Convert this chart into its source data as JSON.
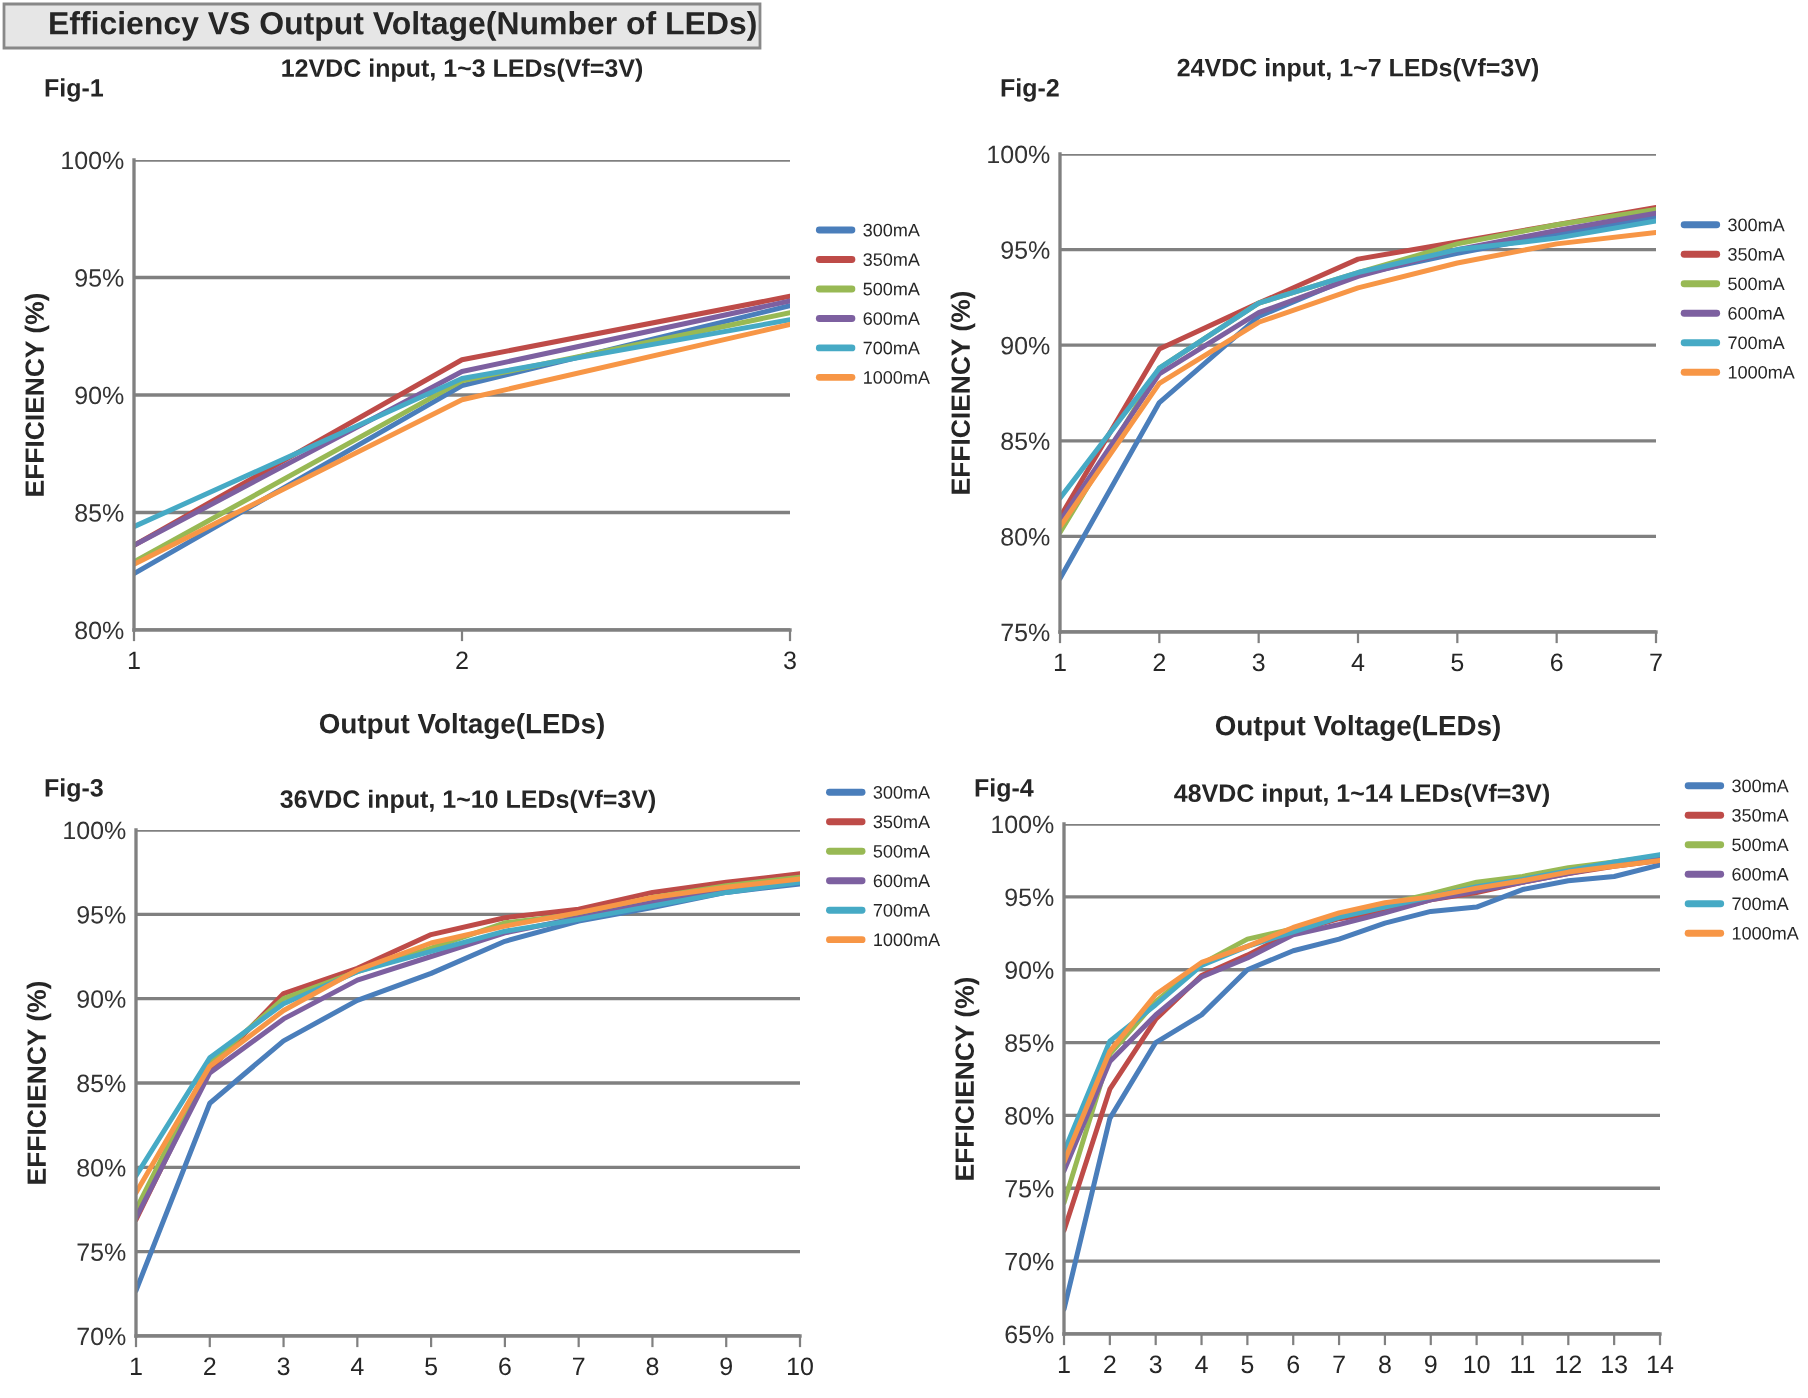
{
  "chart_data": [
    {
      "type": "line",
      "title": "12VDC input, 1~3 LEDs(Vf=3V)",
      "xlabel": "Output Voltage(LEDs)",
      "ylabel": "EFFICIENCY (%)",
      "annotations": [
        "Efficiency VS Output Voltage(Number of LEDs)",
        "Fig-1"
      ],
      "x": [
        1,
        2,
        3
      ],
      "xlim": [
        1,
        3
      ],
      "xticks": [
        1,
        2,
        3
      ],
      "ylim": [
        80,
        100
      ],
      "yticks": [
        {
          "value": 80,
          "label": "80%"
        },
        {
          "value": 85,
          "label": "85%"
        },
        {
          "value": 90,
          "label": "90%"
        },
        {
          "value": 95,
          "label": "95%"
        },
        {
          "value": 100,
          "label": "100%"
        }
      ],
      "grid": "y",
      "legend": "right",
      "marker": "none",
      "line_style": "solid",
      "series": [
        {
          "name": "300mA",
          "color": "#4a7ebb",
          "values": [
            82.4,
            90.4,
            93.8
          ]
        },
        {
          "name": "350mA",
          "color": "#be4b48",
          "values": [
            83.6,
            91.5,
            94.2
          ]
        },
        {
          "name": "500mA",
          "color": "#98b954",
          "values": [
            82.9,
            90.6,
            93.5
          ]
        },
        {
          "name": "600mA",
          "color": "#7d60a0",
          "values": [
            83.6,
            91.0,
            94.0
          ]
        },
        {
          "name": "700mA",
          "color": "#46aac5",
          "values": [
            84.4,
            90.7,
            93.2
          ]
        },
        {
          "name": "1000mA",
          "color": "#f79646",
          "values": [
            82.8,
            89.8,
            93.0
          ]
        }
      ]
    },
    {
      "type": "line",
      "title": "24VDC input, 1~7 LEDs(Vf=3V)",
      "xlabel": "Output Voltage(LEDs)",
      "ylabel": "EFFICIENCY (%)",
      "annotations": [
        "Fig-2"
      ],
      "x": [
        1,
        2,
        3,
        4,
        5,
        6,
        7
      ],
      "xlim": [
        1,
        7
      ],
      "xticks": [
        1,
        2,
        3,
        4,
        5,
        6,
        7
      ],
      "ylim": [
        75,
        100
      ],
      "yticks": [
        {
          "value": 75,
          "label": "75%"
        },
        {
          "value": 80,
          "label": "80%"
        },
        {
          "value": 85,
          "label": "85%"
        },
        {
          "value": 90,
          "label": "90%"
        },
        {
          "value": 95,
          "label": "95%"
        },
        {
          "value": 100,
          "label": "100%"
        }
      ],
      "grid": "y",
      "legend": "right",
      "marker": "none",
      "line_style": "solid",
      "series": [
        {
          "name": "300mA",
          "color": "#4a7ebb",
          "values": [
            77.8,
            87.0,
            91.5,
            93.7,
            94.8,
            95.8,
            96.7
          ]
        },
        {
          "name": "350mA",
          "color": "#be4b48",
          "values": [
            81.0,
            89.8,
            92.2,
            94.5,
            95.4,
            96.3,
            97.2
          ]
        },
        {
          "name": "500mA",
          "color": "#98b954",
          "values": [
            80.2,
            88.8,
            92.2,
            93.8,
            95.3,
            96.3,
            97.1
          ]
        },
        {
          "name": "600mA",
          "color": "#7d60a0",
          "values": [
            80.8,
            88.5,
            91.7,
            93.6,
            95.0,
            96.0,
            96.9
          ]
        },
        {
          "name": "700mA",
          "color": "#46aac5",
          "values": [
            82.0,
            88.8,
            92.2,
            93.8,
            95.0,
            95.6,
            96.5
          ]
        },
        {
          "name": "1000mA",
          "color": "#f79646",
          "values": [
            80.5,
            88.0,
            91.2,
            93.0,
            94.3,
            95.3,
            95.9
          ]
        }
      ]
    },
    {
      "type": "line",
      "title": "36VDC input, 1~10 LEDs(Vf=3V)",
      "ylabel": "EFFICIENCY (%)",
      "annotations": [
        "Fig-3"
      ],
      "x": [
        1,
        2,
        3,
        4,
        5,
        6,
        7,
        8,
        9,
        10
      ],
      "xlim": [
        1,
        10
      ],
      "xticks": [
        1,
        2,
        3,
        4,
        5,
        6,
        7,
        8,
        9,
        10
      ],
      "ylim": [
        70,
        100
      ],
      "yticks": [
        {
          "value": 70,
          "label": "70%"
        },
        {
          "value": 75,
          "label": "75%"
        },
        {
          "value": 80,
          "label": "80%"
        },
        {
          "value": 85,
          "label": "85%"
        },
        {
          "value": 90,
          "label": "90%"
        },
        {
          "value": 95,
          "label": "95%"
        },
        {
          "value": 100,
          "label": "100%"
        }
      ],
      "grid": "y",
      "legend": "right",
      "marker": "none",
      "line_style": "solid",
      "series": [
        {
          "name": "300mA",
          "color": "#4a7ebb",
          "values": [
            72.7,
            83.8,
            87.5,
            89.9,
            91.5,
            93.4,
            94.6,
            95.4,
            96.3,
            96.8
          ]
        },
        {
          "name": "350mA",
          "color": "#be4b48",
          "values": [
            76.9,
            85.8,
            90.3,
            91.8,
            93.8,
            94.8,
            95.3,
            96.3,
            96.9,
            97.4
          ]
        },
        {
          "name": "500mA",
          "color": "#98b954",
          "values": [
            77.5,
            86.2,
            90.0,
            91.6,
            93.0,
            94.5,
            95.0,
            96.0,
            96.7,
            97.2
          ]
        },
        {
          "name": "600mA",
          "color": "#7d60a0",
          "values": [
            77.0,
            85.6,
            88.8,
            91.1,
            92.5,
            93.9,
            94.8,
            95.7,
            96.5,
            97.0
          ]
        },
        {
          "name": "700mA",
          "color": "#46aac5",
          "values": [
            79.5,
            86.5,
            89.7,
            91.6,
            92.8,
            94.0,
            94.7,
            95.5,
            96.3,
            96.9
          ]
        },
        {
          "name": "1000mA",
          "color": "#f79646",
          "values": [
            78.5,
            86.0,
            89.3,
            91.7,
            93.3,
            94.3,
            95.1,
            96.0,
            96.6,
            97.1
          ]
        }
      ]
    },
    {
      "type": "line",
      "title": "48VDC input, 1~14 LEDs(Vf=3V)",
      "ylabel": "EFFICIENCY (%)",
      "annotations": [
        "Fig-4"
      ],
      "x": [
        1,
        2,
        3,
        4,
        5,
        6,
        7,
        8,
        9,
        10,
        11,
        12,
        13,
        14
      ],
      "xlim": [
        1,
        14
      ],
      "xticks": [
        1,
        2,
        3,
        4,
        5,
        6,
        7,
        8,
        9,
        10,
        11,
        12,
        13,
        14
      ],
      "ylim": [
        65,
        100
      ],
      "yticks": [
        {
          "value": 65,
          "label": "65%"
        },
        {
          "value": 70,
          "label": "70%"
        },
        {
          "value": 75,
          "label": "75%"
        },
        {
          "value": 80,
          "label": "80%"
        },
        {
          "value": 85,
          "label": "85%"
        },
        {
          "value": 90,
          "label": "90%"
        },
        {
          "value": 95,
          "label": "95%"
        },
        {
          "value": 100,
          "label": "100%"
        }
      ],
      "grid": "y",
      "legend": "right",
      "marker": "none",
      "line_style": "solid",
      "series": [
        {
          "name": "300mA",
          "color": "#4a7ebb",
          "values": [
            66.7,
            79.8,
            85.0,
            86.9,
            90.0,
            91.3,
            92.1,
            93.2,
            94.0,
            94.3,
            95.5,
            96.1,
            96.4,
            97.2
          ]
        },
        {
          "name": "350mA",
          "color": "#be4b48",
          "values": [
            72.1,
            81.8,
            86.6,
            89.6,
            91.0,
            92.6,
            93.5,
            94.0,
            94.8,
            95.3,
            96.0,
            96.6,
            97.1,
            97.5
          ]
        },
        {
          "name": "500mA",
          "color": "#98b954",
          "values": [
            74.0,
            84.2,
            87.8,
            90.4,
            92.1,
            92.8,
            93.8,
            94.5,
            95.2,
            96.0,
            96.4,
            97.0,
            97.4,
            97.8
          ]
        },
        {
          "name": "600mA",
          "color": "#7d60a0",
          "values": [
            76.2,
            83.7,
            86.9,
            89.5,
            90.8,
            92.4,
            93.1,
            93.9,
            94.8,
            95.4,
            96.0,
            96.6,
            97.2,
            97.6
          ]
        },
        {
          "name": "700mA",
          "color": "#46aac5",
          "values": [
            77.5,
            85.1,
            87.6,
            90.3,
            91.6,
            92.6,
            93.6,
            94.3,
            95.0,
            95.7,
            96.2,
            96.8,
            97.4,
            97.9
          ]
        },
        {
          "name": "1000mA",
          "color": "#f79646",
          "values": [
            76.8,
            84.4,
            88.3,
            90.5,
            91.6,
            92.9,
            93.9,
            94.6,
            95.0,
            95.6,
            96.1,
            96.7,
            97.1,
            97.5
          ]
        }
      ]
    }
  ]
}
